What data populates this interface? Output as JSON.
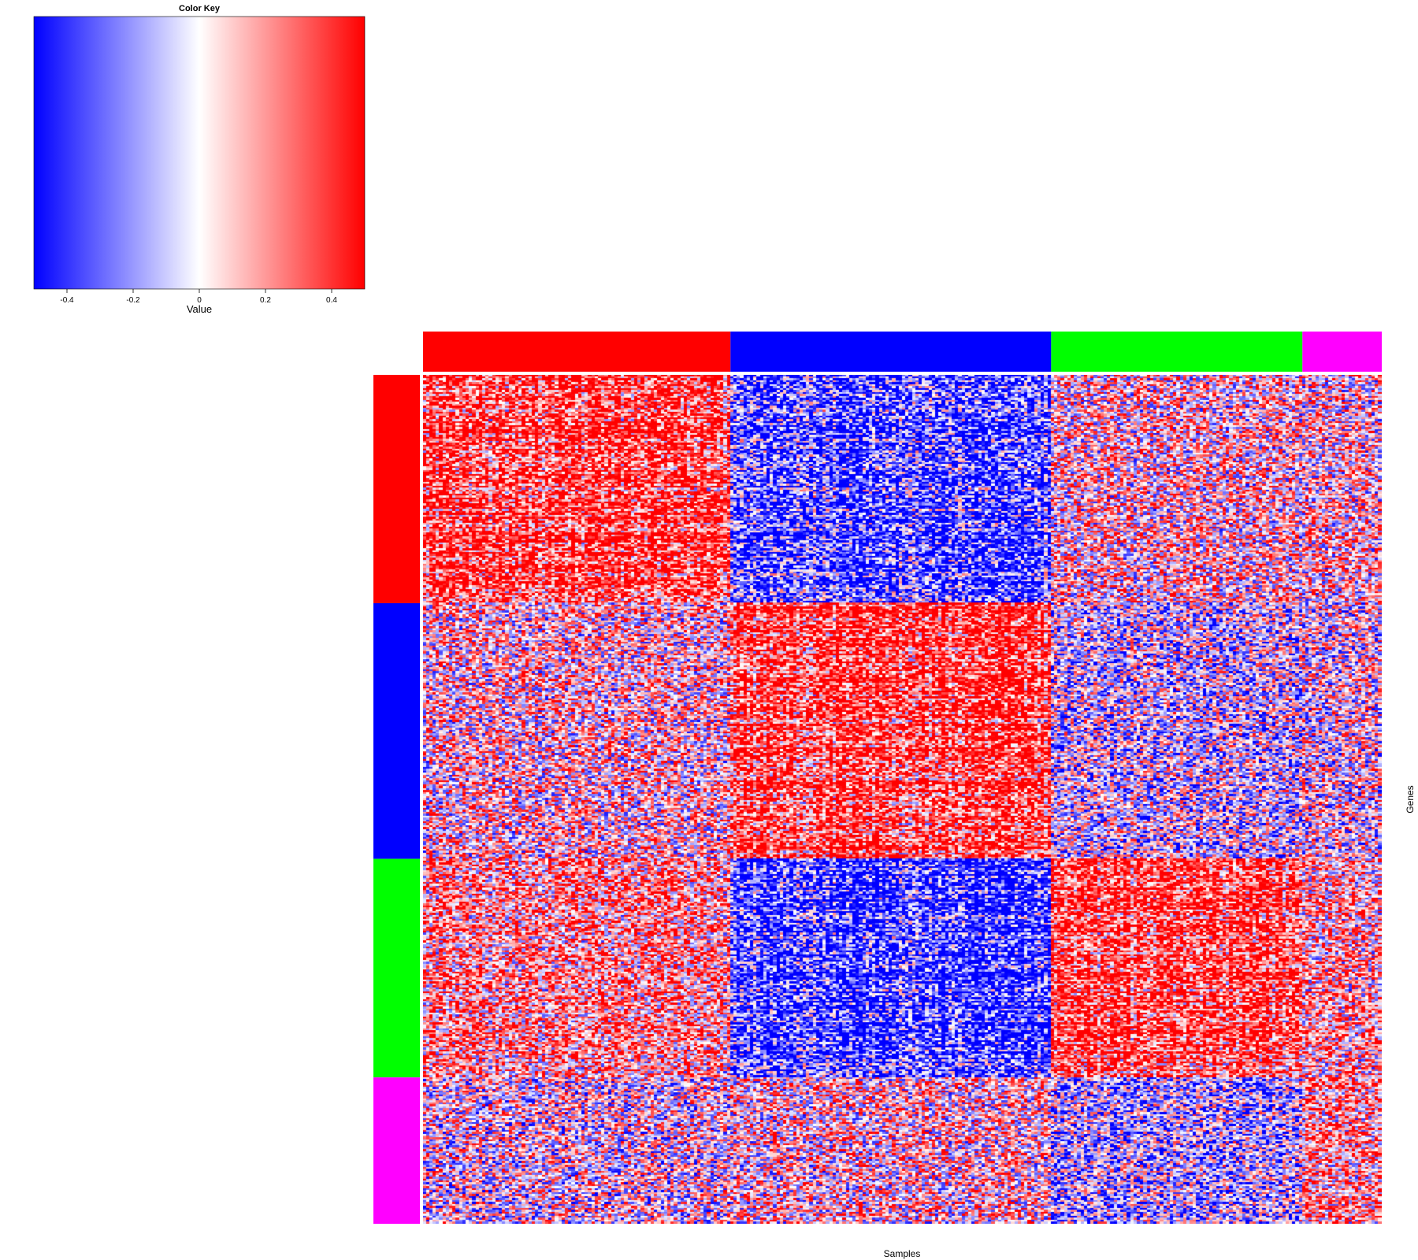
{
  "chart_data": {
    "type": "heatmap",
    "title": "",
    "xlabel": "Samples",
    "ylabel": "Genes",
    "color_key": {
      "title": "Color Key",
      "xlabel": "Value",
      "range": [
        -0.5,
        0.5
      ],
      "ticks": [
        -0.4,
        -0.2,
        0,
        0.2,
        0.4
      ],
      "tick_labels": [
        "-0.4",
        "-0.2",
        "0",
        "0.2",
        "0.4"
      ],
      "low_color": "#0000ff",
      "mid_color": "#ffffff",
      "high_color": "#ff0000"
    },
    "column_groups": [
      {
        "color": "#ff0000",
        "count": 93
      },
      {
        "color": "#0000ff",
        "count": 97
      },
      {
        "color": "#00ff00",
        "count": 76
      },
      {
        "color": "#ff00ff",
        "count": 24
      }
    ],
    "row_groups": [
      {
        "color": "#ff0000",
        "count": 117
      },
      {
        "color": "#0000ff",
        "count": 131
      },
      {
        "color": "#00ff00",
        "count": 112
      },
      {
        "color": "#ff00ff",
        "count": 75
      }
    ],
    "block_pattern": {
      "description": "Mean expression tendency per (row group, column group); +1 red, -1 blue, 0 neutral",
      "values": [
        [
          0.6,
          -0.5,
          0.1,
          0.1
        ],
        [
          0.1,
          0.6,
          -0.1,
          0.0
        ],
        [
          0.3,
          -0.6,
          0.6,
          0.2
        ],
        [
          0.0,
          0.1,
          -0.2,
          0.3
        ]
      ]
    }
  }
}
